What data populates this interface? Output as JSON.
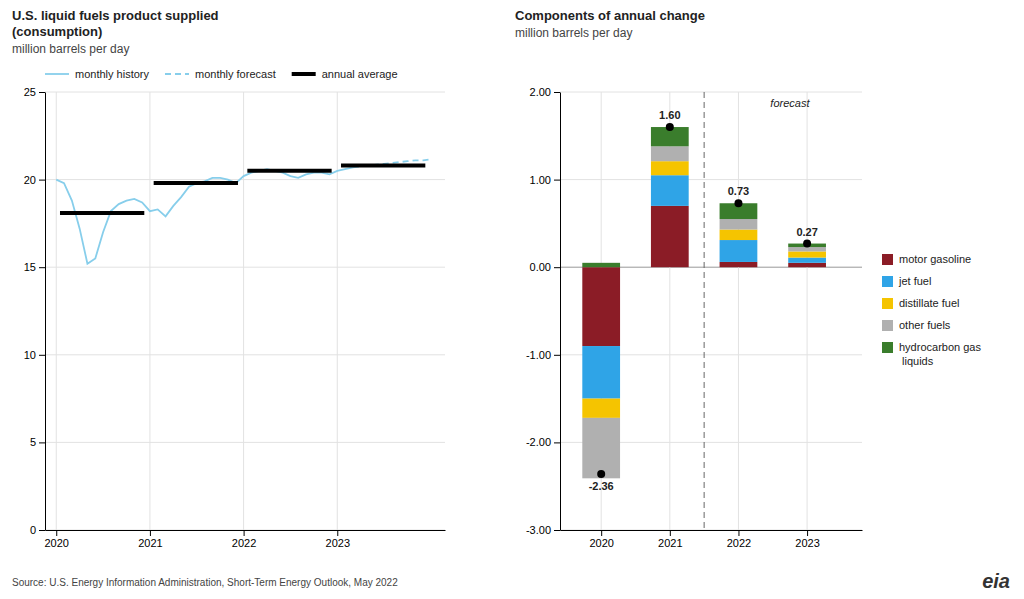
{
  "chart_data": [
    {
      "type": "line",
      "title": "U.S. liquid fuels product supplied\n(consumption)",
      "subtitle": "million barrels per day",
      "series": [
        {
          "name": "monthly history",
          "color": "#87ceeb",
          "line_style": "solid",
          "x": [
            2020.0,
            2020.083,
            2020.167,
            2020.25,
            2020.333,
            2020.417,
            2020.5,
            2020.583,
            2020.667,
            2020.75,
            2020.833,
            2020.917,
            2021.0,
            2021.083,
            2021.167,
            2021.25,
            2021.333,
            2021.417,
            2021.5,
            2021.583,
            2021.667,
            2021.75,
            2021.833,
            2021.917,
            2022.0,
            2022.083,
            2022.167,
            2022.25,
            2022.333,
            2022.417,
            2022.5,
            2022.583,
            2022.667,
            2022.75,
            2022.833,
            2022.917,
            2023.0,
            2023.083,
            2023.167
          ],
          "values": [
            20.0,
            19.8,
            18.8,
            17.2,
            15.2,
            15.5,
            17.0,
            18.2,
            18.6,
            18.8,
            18.9,
            18.7,
            18.2,
            18.3,
            17.9,
            18.5,
            19.0,
            19.6,
            19.8,
            19.9,
            20.1,
            20.1,
            20.0,
            19.8,
            20.2,
            20.4,
            20.5,
            20.6,
            20.5,
            20.4,
            20.2,
            20.1,
            20.3,
            20.4,
            20.4,
            20.3,
            20.5,
            20.6,
            20.7
          ]
        },
        {
          "name": "monthly forecast",
          "color": "#87ceeb",
          "line_style": "dashed",
          "x": [
            2023.167,
            2023.25,
            2023.333,
            2023.417,
            2023.5,
            2023.583,
            2023.667,
            2023.75,
            2023.833,
            2023.917,
            2024.0
          ],
          "values": [
            20.7,
            20.75,
            20.8,
            20.85,
            20.9,
            20.95,
            21.0,
            21.05,
            21.1,
            21.1,
            21.15
          ]
        },
        {
          "name": "annual average",
          "type": "segment",
          "color": "black",
          "x": [
            2020,
            2021,
            2022,
            2023
          ],
          "values": [
            18.1,
            19.8,
            20.5,
            20.8
          ]
        }
      ],
      "xlim": [
        2019.88,
        2024.15
      ],
      "xticks": [
        2020,
        2021,
        2022,
        2023
      ],
      "ylim": [
        0,
        25
      ],
      "yticks": [
        0,
        5,
        10,
        15,
        20,
        25
      ],
      "grid": true,
      "legend": "top"
    },
    {
      "type": "bar",
      "stacked": true,
      "title": "Components of annual change",
      "subtitle": "million barrels per day",
      "x": [
        2020,
        2021,
        2022,
        2023
      ],
      "series": [
        {
          "name": "motor gasoline",
          "color": "#8b1c26",
          "values": [
            -0.9,
            0.7,
            0.06,
            0.05
          ]
        },
        {
          "name": "jet fuel",
          "color": "#2fa4e7",
          "values": [
            -0.6,
            0.35,
            0.25,
            0.06
          ]
        },
        {
          "name": "distillate fuel",
          "color": "#f5c400",
          "values": [
            -0.22,
            0.16,
            0.12,
            0.07
          ]
        },
        {
          "name": "other fuels",
          "color": "#b0b0b0",
          "values": [
            -0.69,
            0.17,
            0.12,
            0.05
          ]
        },
        {
          "name": "hydrocarbon gas\n liquids",
          "color": "#3a7d2c",
          "values": [
            0.05,
            0.22,
            0.18,
            0.04
          ]
        },
        {
          "type": "scatter",
          "marker": "circle",
          "color": "black",
          "data_labels": true,
          "values": [
            -2.36,
            1.6,
            0.73,
            0.27
          ],
          "value_labels": [
            "-2.36",
            "1.60",
            "0.73",
            "0.27"
          ]
        }
      ],
      "annotations": [
        {
          "type": "vline",
          "x": 2021.5,
          "line_style": "dashed"
        },
        {
          "text": "forecast",
          "x": 2022.75,
          "y": 1.92
        }
      ],
      "xlim": [
        2019.4,
        2023.8
      ],
      "xticks": [
        2020,
        2021,
        2022,
        2023
      ],
      "ylim": [
        -3.0,
        2.0
      ],
      "yticks": [
        {
          "value": -3.0,
          "label": "-3.00"
        },
        {
          "value": -2.0,
          "label": "-2.00"
        },
        {
          "value": -1.0,
          "label": "-1.00"
        },
        {
          "value": 0.0,
          "label": "0.00"
        },
        {
          "value": 1.0,
          "label": "1.00"
        },
        {
          "value": 2.0,
          "label": "2.00"
        }
      ],
      "grid": true,
      "legend": "right"
    }
  ],
  "source": "Source: U.S. Energy Information Administration, Short-Term Energy Outlook, May 2022",
  "logo": "eia"
}
